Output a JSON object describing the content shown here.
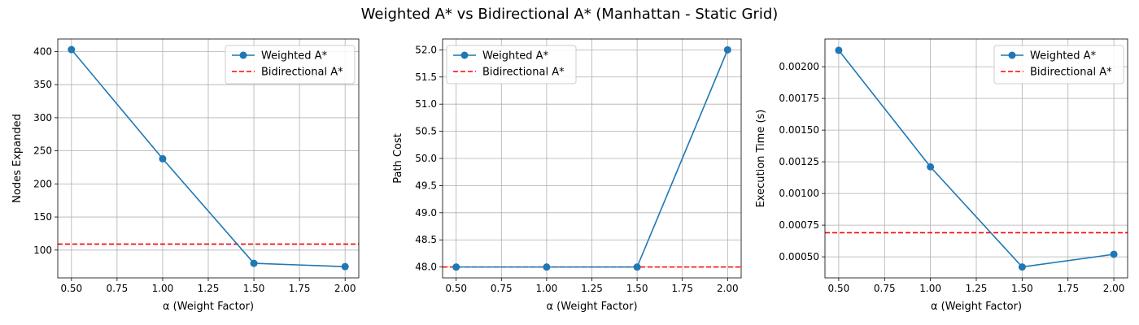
{
  "figure": {
    "title": "Weighted A* vs Bidirectional A* (Manhattan - Static Grid)"
  },
  "colors": {
    "weighted": "#1f77b4",
    "bidirectional": "#ff0000",
    "grid": "#b0b0b0",
    "axis": "#000000"
  },
  "chart_data": [
    {
      "type": "line",
      "xlabel": "α (Weight Factor)",
      "ylabel": "Nodes Expanded",
      "x": [
        0.5,
        1.0,
        1.5,
        2.0
      ],
      "xlim": [
        0.425,
        2.075
      ],
      "ylim": [
        58,
        419
      ],
      "xticks": [
        0.5,
        0.75,
        1.0,
        1.25,
        1.5,
        1.75,
        2.0
      ],
      "xtick_labels": [
        "0.50",
        "0.75",
        "1.00",
        "1.25",
        "1.50",
        "1.75",
        "2.00"
      ],
      "yticks": [
        100,
        150,
        200,
        250,
        300,
        350,
        400
      ],
      "ytick_labels": [
        "100",
        "150",
        "200",
        "250",
        "300",
        "350",
        "400"
      ],
      "grid": true,
      "legend_position": "upper-right",
      "series": [
        {
          "name": "Weighted A*",
          "style": "solid-marker",
          "values": [
            403,
            238,
            80,
            75
          ]
        },
        {
          "name": "Bidirectional A*",
          "style": "dashed-hline",
          "value": 109
        }
      ]
    },
    {
      "type": "line",
      "xlabel": "α (Weight Factor)",
      "ylabel": "Path Cost",
      "x": [
        0.5,
        1.0,
        1.5,
        2.0
      ],
      "xlim": [
        0.425,
        2.075
      ],
      "ylim": [
        47.8,
        52.2
      ],
      "xticks": [
        0.5,
        0.75,
        1.0,
        1.25,
        1.5,
        1.75,
        2.0
      ],
      "xtick_labels": [
        "0.50",
        "0.75",
        "1.00",
        "1.25",
        "1.50",
        "1.75",
        "2.00"
      ],
      "yticks": [
        48.0,
        48.5,
        49.0,
        49.5,
        50.0,
        50.5,
        51.0,
        51.5,
        52.0
      ],
      "ytick_labels": [
        "48.0",
        "48.5",
        "49.0",
        "49.5",
        "50.0",
        "50.5",
        "51.0",
        "51.5",
        "52.0"
      ],
      "grid": true,
      "legend_position": "upper-left",
      "series": [
        {
          "name": "Weighted A*",
          "style": "solid-marker",
          "values": [
            48.0,
            48.0,
            48.0,
            52.0
          ]
        },
        {
          "name": "Bidirectional A*",
          "style": "dashed-hline",
          "value": 48.0
        }
      ]
    },
    {
      "type": "line",
      "xlabel": "α (Weight Factor)",
      "ylabel": "Execution Time (s)",
      "x": [
        0.5,
        1.0,
        1.5,
        2.0
      ],
      "xlim": [
        0.425,
        2.075
      ],
      "ylim": [
        0.000334,
        0.002219
      ],
      "xticks": [
        0.5,
        0.75,
        1.0,
        1.25,
        1.5,
        1.75,
        2.0
      ],
      "xtick_labels": [
        "0.50",
        "0.75",
        "1.00",
        "1.25",
        "1.50",
        "1.75",
        "2.00"
      ],
      "yticks": [
        0.0005,
        0.00075,
        0.001,
        0.00125,
        0.0015,
        0.00175,
        0.002
      ],
      "ytick_labels": [
        "0.00050",
        "0.00075",
        "0.00100",
        "0.00125",
        "0.00150",
        "0.00175",
        "0.00200"
      ],
      "grid": true,
      "legend_position": "upper-right",
      "series": [
        {
          "name": "Weighted A*",
          "style": "solid-marker",
          "values": [
            0.00213,
            0.00121,
            0.00042,
            0.00052
          ]
        },
        {
          "name": "Bidirectional A*",
          "style": "dashed-hline",
          "value": 0.00069
        }
      ]
    }
  ]
}
